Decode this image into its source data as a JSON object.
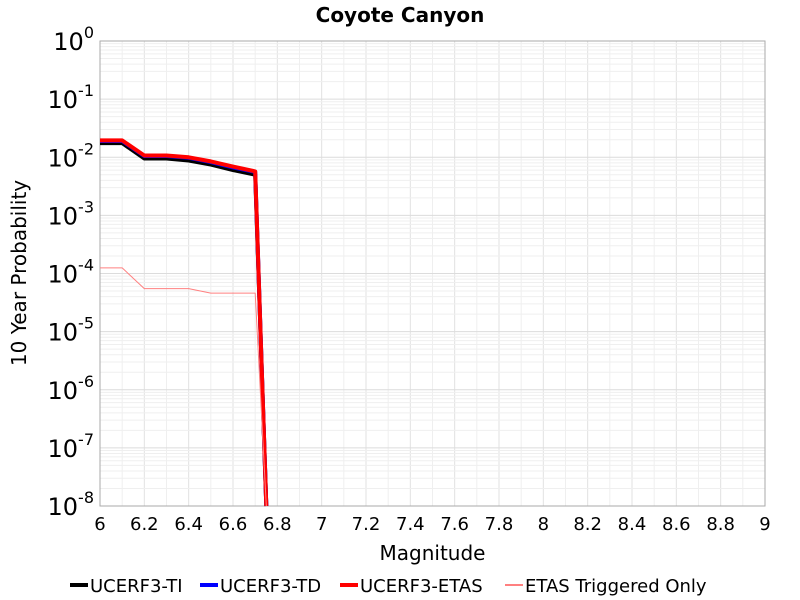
{
  "chart_data": {
    "type": "line",
    "title": "Coyote Canyon",
    "xlabel": "Magnitude",
    "ylabel": "10 Year Probability",
    "xlim": [
      6,
      9
    ],
    "ylim": [
      1e-08,
      1
    ],
    "yscale": "log",
    "grid": true,
    "legend_position": "bottom",
    "x_ticks": [
      "6",
      "6.2",
      "6.4",
      "6.6",
      "6.8",
      "7",
      "7.2",
      "7.4",
      "7.6",
      "7.8",
      "8",
      "8.2",
      "8.4",
      "8.6",
      "8.8",
      "9"
    ],
    "y_ticks": [
      {
        "base": "10",
        "exp": "0"
      },
      {
        "base": "10",
        "exp": "-1"
      },
      {
        "base": "10",
        "exp": "-2"
      },
      {
        "base": "10",
        "exp": "-3"
      },
      {
        "base": "10",
        "exp": "-4"
      },
      {
        "base": "10",
        "exp": "-5"
      },
      {
        "base": "10",
        "exp": "-6"
      },
      {
        "base": "10",
        "exp": "-7"
      },
      {
        "base": "10",
        "exp": "-8"
      }
    ],
    "series": [
      {
        "name": "UCERF3-TI",
        "color": "#000000",
        "x": [
          6.0,
          6.1,
          6.2,
          6.3,
          6.4,
          6.5,
          6.6,
          6.7,
          6.75
        ],
        "y": [
          0.0175,
          0.0175,
          0.0095,
          0.0095,
          0.0088,
          0.0075,
          0.006,
          0.005,
          1e-08
        ]
      },
      {
        "name": "UCERF3-TD",
        "color": "#0000ff",
        "x": [
          6.0,
          6.1,
          6.2,
          6.3,
          6.4,
          6.5,
          6.6,
          6.7,
          6.75
        ],
        "y": [
          0.019,
          0.019,
          0.0105,
          0.0105,
          0.0098,
          0.0083,
          0.0067,
          0.0056,
          1e-08
        ]
      },
      {
        "name": "UCERF3-ETAS",
        "color": "#ff0000",
        "x": [
          6.0,
          6.1,
          6.2,
          6.3,
          6.4,
          6.5,
          6.6,
          6.7,
          6.75
        ],
        "y": [
          0.0195,
          0.0195,
          0.0107,
          0.0107,
          0.01,
          0.0085,
          0.0069,
          0.0057,
          1e-08
        ]
      },
      {
        "name": "ETAS Triggered Only",
        "color": "#ff8080",
        "x": [
          6.0,
          6.1,
          6.2,
          6.3,
          6.4,
          6.5,
          6.6,
          6.7,
          6.75
        ],
        "y": [
          0.000125,
          0.000125,
          5.5e-05,
          5.5e-05,
          5.5e-05,
          4.6e-05,
          4.6e-05,
          4.6e-05,
          1e-08
        ]
      }
    ]
  }
}
